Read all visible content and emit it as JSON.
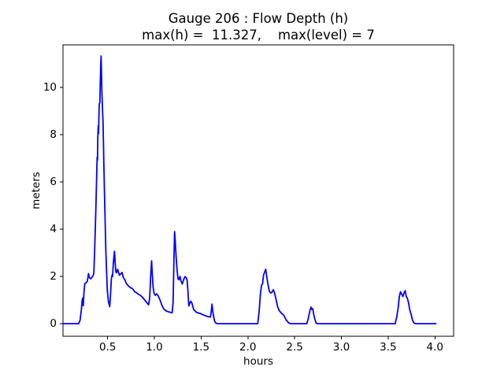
{
  "figure": {
    "title_line1": "Gauge 206 : Flow Depth (h)",
    "title_line2": "max(h) =  11.327,    max(level) = 7",
    "xlabel": "hours",
    "ylabel": "meters"
  },
  "chart_data": {
    "type": "line",
    "title": "Gauge 206 : Flow Depth (h)",
    "subtitle": "max(h) =  11.327,    max(level) = 7",
    "xlabel": "hours",
    "ylabel": "meters",
    "max_h": 11.327,
    "max_level": 7,
    "xlim": [
      0.0225,
      4.2
    ],
    "ylim": [
      -0.533,
      11.8
    ],
    "x_ticks": {
      "values": [
        0.5,
        1.0,
        1.5,
        2.0,
        2.5,
        3.0,
        3.5,
        4.0
      ],
      "labels": [
        "0.5",
        "1.0",
        "1.5",
        "2.0",
        "2.5",
        "3.0",
        "3.5",
        "4.0"
      ]
    },
    "y_ticks": {
      "values": [
        0,
        2,
        4,
        6,
        8,
        10
      ],
      "labels": [
        "0",
        "2",
        "4",
        "6",
        "8",
        "10"
      ]
    },
    "grid": false,
    "legend": "none",
    "colors": {
      "line": "#0000ff",
      "axis": "#000000",
      "background": "#ffffff",
      "text": "#000000"
    },
    "series": [
      {
        "name": "flow_depth_h",
        "color": "#0000ff",
        "points": [
          [
            0.02,
            0
          ],
          [
            0.19,
            0
          ],
          [
            0.205,
            0.15
          ],
          [
            0.218,
            0.55
          ],
          [
            0.228,
            1.0
          ],
          [
            0.233,
            1.08
          ],
          [
            0.239,
            0.76
          ],
          [
            0.248,
            1.4
          ],
          [
            0.256,
            1.7
          ],
          [
            0.27,
            1.73
          ],
          [
            0.283,
            1.8
          ],
          [
            0.295,
            2.12
          ],
          [
            0.305,
            1.95
          ],
          [
            0.318,
            1.9
          ],
          [
            0.33,
            1.95
          ],
          [
            0.342,
            2.02
          ],
          [
            0.352,
            2.12
          ],
          [
            0.36,
            3.0
          ],
          [
            0.368,
            4.0
          ],
          [
            0.376,
            5.2
          ],
          [
            0.383,
            6.35
          ],
          [
            0.388,
            7.05
          ],
          [
            0.391,
            6.9
          ],
          [
            0.395,
            7.9
          ],
          [
            0.4,
            8.38
          ],
          [
            0.403,
            8.05
          ],
          [
            0.407,
            8.95
          ],
          [
            0.411,
            9.3
          ],
          [
            0.417,
            9.35
          ],
          [
            0.421,
            10.15
          ],
          [
            0.424,
            10.6
          ],
          [
            0.427,
            11.0
          ],
          [
            0.43,
            11.327
          ],
          [
            0.434,
            10.55
          ],
          [
            0.438,
            9.9
          ],
          [
            0.442,
            9.4
          ],
          [
            0.446,
            8.95
          ],
          [
            0.45,
            8.55
          ],
          [
            0.455,
            7.6
          ],
          [
            0.459,
            6.85
          ],
          [
            0.466,
            5.5
          ],
          [
            0.473,
            4.35
          ],
          [
            0.48,
            3.2
          ],
          [
            0.487,
            2.35
          ],
          [
            0.497,
            1.4
          ],
          [
            0.508,
            0.95
          ],
          [
            0.517,
            0.8
          ],
          [
            0.522,
            0.72
          ],
          [
            0.53,
            1.2
          ],
          [
            0.54,
            1.9
          ],
          [
            0.547,
            2.05
          ],
          [
            0.553,
            2.0
          ],
          [
            0.56,
            2.5
          ],
          [
            0.568,
            2.9
          ],
          [
            0.573,
            3.06
          ],
          [
            0.58,
            2.6
          ],
          [
            0.588,
            2.2
          ],
          [
            0.594,
            2.15
          ],
          [
            0.6,
            2.22
          ],
          [
            0.607,
            2.3
          ],
          [
            0.615,
            2.2
          ],
          [
            0.626,
            2.05
          ],
          [
            0.64,
            2.1
          ],
          [
            0.654,
            2.17
          ],
          [
            0.668,
            1.95
          ],
          [
            0.682,
            1.87
          ],
          [
            0.7,
            1.7
          ],
          [
            0.724,
            1.59
          ],
          [
            0.745,
            1.52
          ],
          [
            0.766,
            1.48
          ],
          [
            0.79,
            1.35
          ],
          [
            0.808,
            1.31
          ],
          [
            0.83,
            1.24
          ],
          [
            0.85,
            1.2
          ],
          [
            0.879,
            1.09
          ],
          [
            0.9,
            0.98
          ],
          [
            0.92,
            0.88
          ],
          [
            0.938,
            0.8
          ],
          [
            0.95,
            1.1
          ],
          [
            0.96,
            2.0
          ],
          [
            0.97,
            2.66
          ],
          [
            0.978,
            2.1
          ],
          [
            0.986,
            1.55
          ],
          [
            0.997,
            1.27
          ],
          [
            1.01,
            1.2
          ],
          [
            1.025,
            1.26
          ],
          [
            1.042,
            1.17
          ],
          [
            1.06,
            1.0
          ],
          [
            1.08,
            0.78
          ],
          [
            1.1,
            0.62
          ],
          [
            1.13,
            0.53
          ],
          [
            1.16,
            0.49
          ],
          [
            1.19,
            0.46
          ],
          [
            1.2,
            0.9
          ],
          [
            1.208,
            2.6
          ],
          [
            1.216,
            3.9
          ],
          [
            1.223,
            3.5
          ],
          [
            1.232,
            2.85
          ],
          [
            1.242,
            2.3
          ],
          [
            1.252,
            1.9
          ],
          [
            1.262,
            1.86
          ],
          [
            1.273,
            2.0
          ],
          [
            1.285,
            1.8
          ],
          [
            1.298,
            1.68
          ],
          [
            1.312,
            1.85
          ],
          [
            1.326,
            1.99
          ],
          [
            1.34,
            1.95
          ],
          [
            1.35,
            1.85
          ],
          [
            1.358,
            1.4
          ],
          [
            1.368,
            0.75
          ],
          [
            1.378,
            0.85
          ],
          [
            1.389,
            0.95
          ],
          [
            1.4,
            0.88
          ],
          [
            1.42,
            0.6
          ],
          [
            1.45,
            0.48
          ],
          [
            1.49,
            0.43
          ],
          [
            1.53,
            0.36
          ],
          [
            1.57,
            0.3
          ],
          [
            1.6,
            0.28
          ],
          [
            1.609,
            0.55
          ],
          [
            1.616,
            0.83
          ],
          [
            1.624,
            0.55
          ],
          [
            1.633,
            0.3
          ],
          [
            1.645,
            0.1
          ],
          [
            1.658,
            0.02
          ],
          [
            1.675,
            0
          ],
          [
            2.105,
            0
          ],
          [
            2.12,
            0.5
          ],
          [
            2.135,
            1.3
          ],
          [
            2.147,
            1.63
          ],
          [
            2.157,
            1.68
          ],
          [
            2.167,
            2.05
          ],
          [
            2.18,
            2.2
          ],
          [
            2.19,
            2.3
          ],
          [
            2.2,
            2.05
          ],
          [
            2.212,
            1.72
          ],
          [
            2.228,
            1.38
          ],
          [
            2.243,
            1.3
          ],
          [
            2.258,
            1.33
          ],
          [
            2.272,
            1.44
          ],
          [
            2.285,
            1.3
          ],
          [
            2.3,
            1.05
          ],
          [
            2.318,
            0.72
          ],
          [
            2.335,
            0.55
          ],
          [
            2.36,
            0.44
          ],
          [
            2.385,
            0.35
          ],
          [
            2.41,
            0.15
          ],
          [
            2.44,
            0.02
          ],
          [
            2.46,
            0
          ],
          [
            2.63,
            0
          ],
          [
            2.648,
            0.25
          ],
          [
            2.663,
            0.55
          ],
          [
            2.675,
            0.7
          ],
          [
            2.685,
            0.6
          ],
          [
            2.694,
            0.63
          ],
          [
            2.703,
            0.4
          ],
          [
            2.715,
            0.2
          ],
          [
            2.73,
            0.02
          ],
          [
            2.745,
            0
          ],
          [
            3.575,
            0
          ],
          [
            3.593,
            0.3
          ],
          [
            3.608,
            0.7
          ],
          [
            3.62,
            1.15
          ],
          [
            3.632,
            1.35
          ],
          [
            3.645,
            1.25
          ],
          [
            3.658,
            1.15
          ],
          [
            3.67,
            1.3
          ],
          [
            3.682,
            1.4
          ],
          [
            3.694,
            1.15
          ],
          [
            3.706,
            1.07
          ],
          [
            3.717,
            0.9
          ],
          [
            3.73,
            0.6
          ],
          [
            3.745,
            0.4
          ],
          [
            3.76,
            0.15
          ],
          [
            3.775,
            0.04
          ],
          [
            3.79,
            0
          ],
          [
            4.01,
            0
          ]
        ]
      }
    ]
  }
}
